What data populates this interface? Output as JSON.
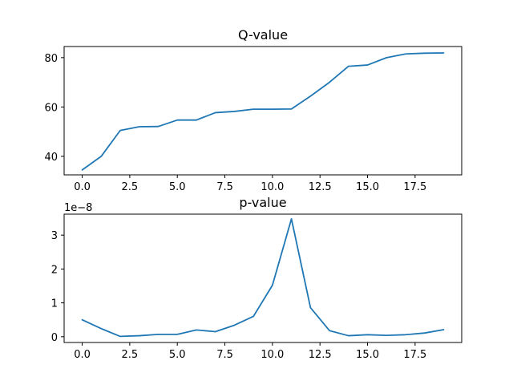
{
  "chart_data": [
    {
      "type": "line",
      "title": "Q-value",
      "xlabel": "",
      "ylabel": "",
      "grid": false,
      "color": "#1f77b4",
      "xlim": [
        -0.95,
        19.95
      ],
      "ylim": [
        32.5,
        84.5
      ],
      "xticks": [
        0.0,
        2.5,
        5.0,
        7.5,
        10.0,
        12.5,
        15.0,
        17.5
      ],
      "xtick_labels": [
        "0.0",
        "2.5",
        "5.0",
        "7.5",
        "10.0",
        "12.5",
        "15.0",
        "17.5"
      ],
      "yticks": [
        40,
        60,
        80
      ],
      "ytick_labels": [
        "40",
        "60",
        "80"
      ],
      "offset_text": "",
      "series": [
        {
          "x": [
            0,
            1,
            2,
            3,
            4,
            5,
            6,
            7,
            8,
            9,
            10,
            11,
            12,
            13,
            14,
            15,
            16,
            17,
            18,
            19
          ],
          "values": [
            34.5,
            40.0,
            50.5,
            52.0,
            52.1,
            54.7,
            54.7,
            57.7,
            58.2,
            59.1,
            59.1,
            59.2,
            64.4,
            70.0,
            76.5,
            77.0,
            80.0,
            81.5,
            81.8,
            81.9
          ]
        }
      ]
    },
    {
      "type": "line",
      "title": "p-value",
      "xlabel": "",
      "ylabel": "",
      "grid": false,
      "color": "#1f77b4",
      "xlim": [
        -0.95,
        19.95
      ],
      "ylim": [
        -0.17,
        3.62
      ],
      "xticks": [
        0.0,
        2.5,
        5.0,
        7.5,
        10.0,
        12.5,
        15.0,
        17.5
      ],
      "xtick_labels": [
        "0.0",
        "2.5",
        "5.0",
        "7.5",
        "10.0",
        "12.5",
        "15.0",
        "17.5"
      ],
      "yticks": [
        0,
        1,
        2,
        3
      ],
      "ytick_labels": [
        "0",
        "1",
        "2",
        "3"
      ],
      "offset_text": "1e−8",
      "series": [
        {
          "x": [
            0,
            1,
            2,
            3,
            4,
            5,
            6,
            7,
            8,
            9,
            10,
            11,
            12,
            13,
            14,
            15,
            16,
            17,
            18,
            19
          ],
          "values": [
            0.5,
            0.24,
            0.01,
            0.03,
            0.07,
            0.07,
            0.2,
            0.15,
            0.34,
            0.6,
            1.52,
            3.48,
            0.86,
            0.18,
            0.03,
            0.06,
            0.04,
            0.06,
            0.11,
            0.21
          ]
        }
      ]
    }
  ]
}
